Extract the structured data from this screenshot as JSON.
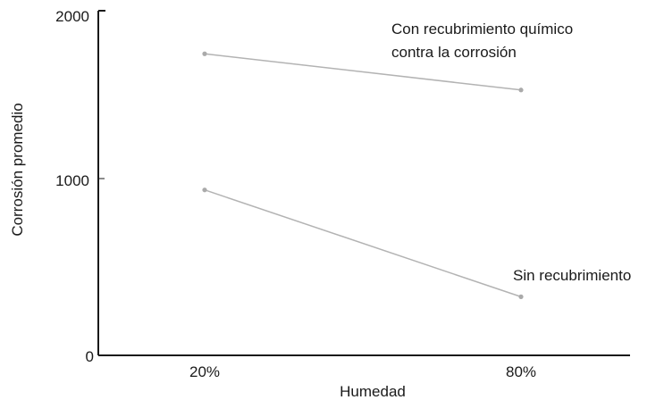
{
  "chart_data": {
    "type": "line",
    "title": "",
    "xlabel": "Humedad",
    "ylabel": "Corrosión promedio",
    "categories": [
      "20%",
      "80%"
    ],
    "ylim": [
      0,
      2000
    ],
    "yticks": [
      "0",
      "1000",
      "2000"
    ],
    "grid": false,
    "legend": "none",
    "series": [
      {
        "name": "Con recubrimiento químico contra la corrosión",
        "label_lines": [
          "Con recubrimiento químico",
          "contra la corrosión"
        ],
        "values": [
          1750,
          1540
        ],
        "color": "#b3b3b3"
      },
      {
        "name": "Sin recubrimiento",
        "label_lines": [
          "Sin recubrimiento"
        ],
        "values": [
          960,
          340
        ],
        "color": "#b3b3b3"
      }
    ]
  }
}
